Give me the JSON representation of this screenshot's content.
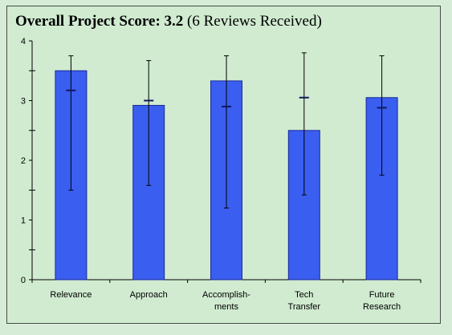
{
  "title": {
    "bold": "Overall Project Score:  3.2",
    "normal": " (6 Reviews Received)"
  },
  "colors": {
    "bar_fill": "#3a5ef0",
    "bar_stroke": "#1a2a9a",
    "axis": "#000000"
  },
  "chart_data": {
    "type": "bar",
    "categories": [
      [
        "Relevance"
      ],
      [
        "Approach"
      ],
      [
        "Accomplish-",
        "ments"
      ],
      [
        "Tech",
        "Transfer"
      ],
      [
        "Future",
        "Research"
      ]
    ],
    "values": [
      3.5,
      2.92,
      3.33,
      2.5,
      3.05
    ],
    "error_high": [
      3.75,
      3.67,
      3.75,
      3.8,
      3.75
    ],
    "error_low": [
      1.5,
      1.58,
      1.2,
      1.42,
      1.75
    ],
    "markers": [
      3.17,
      3.0,
      2.9,
      3.05,
      2.88
    ],
    "ylim": [
      0,
      4
    ],
    "yticks": [
      "0",
      "1",
      "2",
      "3",
      "4"
    ],
    "grid": false,
    "legend": "none"
  }
}
